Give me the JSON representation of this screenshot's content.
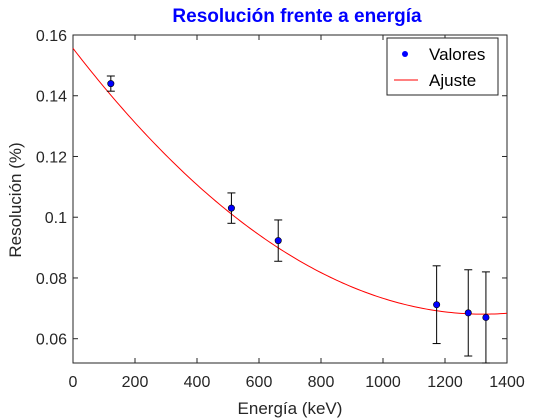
{
  "chart_data": {
    "type": "scatter",
    "title": "Resolución frente a energía",
    "xlabel": "Energía (keV)",
    "ylabel": "Resolución (%)",
    "xlim": [
      0,
      1400
    ],
    "ylim": [
      0.052,
      0.16
    ],
    "xticks": [
      "0",
      "200",
      "400",
      "600",
      "800",
      "1000",
      "1200",
      "1400"
    ],
    "xtick_values": [
      0,
      200,
      400,
      600,
      800,
      1000,
      1200,
      1400
    ],
    "yticks": [
      "0.06",
      "0.08",
      "0.1",
      "0.12",
      "0.14",
      "0.16"
    ],
    "ytick_values": [
      0.06,
      0.08,
      0.1,
      0.12,
      0.14,
      0.16
    ],
    "grid": false,
    "legend_position": "top-right",
    "series": [
      {
        "name": "Valores",
        "kind": "markers",
        "color": "#0000ff",
        "points": [
          {
            "x": 122,
            "y": 0.144,
            "err": 0.0025
          },
          {
            "x": 511,
            "y": 0.103,
            "err": 0.005
          },
          {
            "x": 662,
            "y": 0.0923,
            "err": 0.0068
          },
          {
            "x": 1173,
            "y": 0.0712,
            "err": 0.0128
          },
          {
            "x": 1275,
            "y": 0.0685,
            "err": 0.0142
          },
          {
            "x": 1332,
            "y": 0.067,
            "err": 0.015
          }
        ]
      },
      {
        "name": "Ajuste",
        "kind": "line",
        "color": "#ff0000",
        "quadratic_fit": {
          "a": 5e-08,
          "b": -0.0001323,
          "c": 0.1556
        }
      }
    ]
  }
}
